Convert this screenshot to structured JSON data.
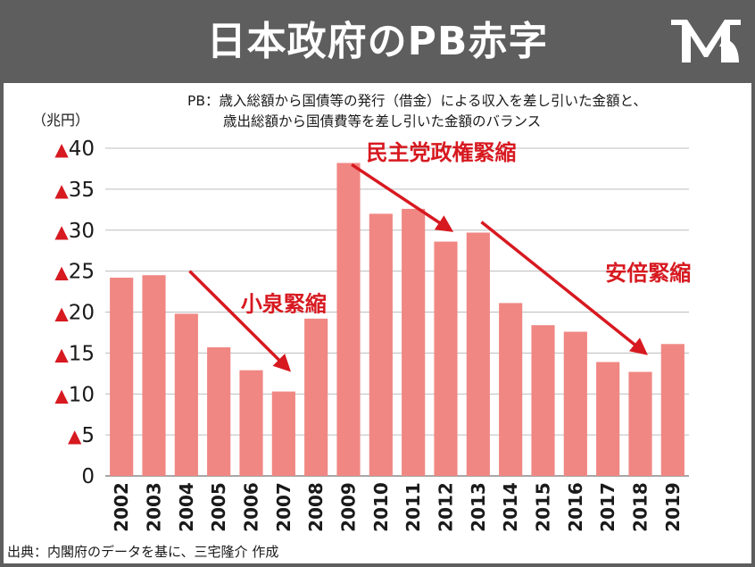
{
  "header": {
    "title": "日本政府のPB赤字",
    "logo_icon": "mr-logo-icon"
  },
  "note": {
    "line1": "PB：歳入総額から国債等の発行（借金）による収入を差し引いた金額と、",
    "line2": "歳出総額から国債費等を差し引いた金額のバランス"
  },
  "footer": {
    "source": "出典：内閣府のデータを基に、三宅隆介 作成"
  },
  "colors": {
    "header_bg": "#5e5e5e",
    "bar": "#f08783",
    "accent": "#d71920",
    "grid": "#bdbdbd"
  },
  "chart_data": {
    "type": "bar",
    "title": "日本政府のPB赤字",
    "ylabel": "（兆円）",
    "xlabel": "",
    "ylim": [
      0,
      40
    ],
    "y_ticks": [
      0,
      5,
      10,
      15,
      20,
      25,
      30,
      35,
      40
    ],
    "y_tick_labels": [
      "0",
      "▲5",
      "▲10",
      "▲15",
      "▲20",
      "▲25",
      "▲30",
      "▲35",
      "▲40"
    ],
    "grid": "horizontal",
    "categories": [
      "2002",
      "2003",
      "2004",
      "2005",
      "2006",
      "2007",
      "2008",
      "2009",
      "2010",
      "2011",
      "2012",
      "2013",
      "2014",
      "2015",
      "2016",
      "2017",
      "2018",
      "2019"
    ],
    "values": [
      24.2,
      24.5,
      19.8,
      15.7,
      12.9,
      10.3,
      19.2,
      38.2,
      32.0,
      32.6,
      28.6,
      29.7,
      21.1,
      18.4,
      17.6,
      13.9,
      12.7,
      16.1
    ],
    "annotations": [
      {
        "text": "小泉緊縮",
        "arrow_from": [
          2004,
          25
        ],
        "arrow_to": [
          2007,
          13
        ]
      },
      {
        "text": "民主党政権緊縮",
        "arrow_from": [
          2009,
          38
        ],
        "arrow_to": [
          2012,
          30
        ]
      },
      {
        "text": "安倍緊縮",
        "arrow_from": [
          2013,
          31
        ],
        "arrow_to": [
          2018,
          15
        ]
      }
    ]
  }
}
